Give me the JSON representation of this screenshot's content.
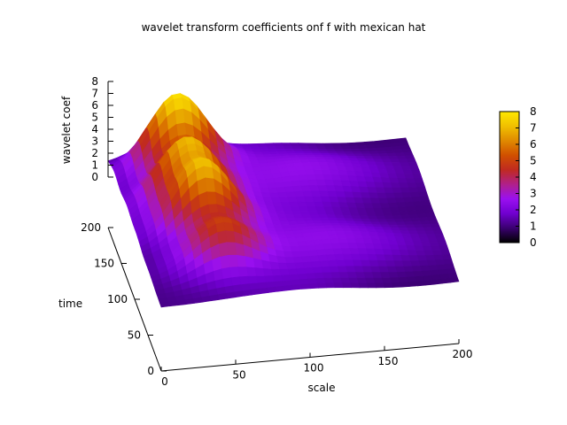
{
  "chart_data": {
    "type": "surface",
    "title": "wavelet transform coefficients onf f with mexican hat",
    "xlabel": "scale",
    "ylabel": "time",
    "zlabel": "wavelet coef",
    "xlim": [
      0,
      200
    ],
    "ylim": [
      0,
      200
    ],
    "zlim": [
      0,
      8
    ],
    "x_ticks": [
      "0",
      "50",
      "100",
      "150",
      "200"
    ],
    "y_ticks": [
      "0",
      "50",
      "100",
      "150",
      "200"
    ],
    "z_ticks": [
      "0",
      "1",
      "2",
      "3",
      "4",
      "5",
      "6",
      "7",
      "8"
    ],
    "colorbar": {
      "range": [
        0,
        8
      ],
      "ticks": [
        "0",
        "1",
        "2",
        "3",
        "4",
        "5",
        "6",
        "7",
        "8"
      ],
      "palette": [
        "#000000",
        "#3a0070",
        "#7000d0",
        "#9a10f0",
        "#b0208a",
        "#c02a20",
        "#d05000",
        "#e08a00",
        "#f0c000",
        "#ffe800"
      ]
    },
    "peaks": [
      {
        "time": 176,
        "scale": 42,
        "coef": 7.6
      },
      {
        "time": 130,
        "scale": 40,
        "coef": 6.4
      },
      {
        "time": 92,
        "scale": 44,
        "coef": 6.6
      },
      {
        "time": 46,
        "scale": 48,
        "coef": 4.6
      }
    ],
    "ridge": {
      "scale": 118,
      "coef": 2.6
    },
    "baseline": 1.1
  }
}
